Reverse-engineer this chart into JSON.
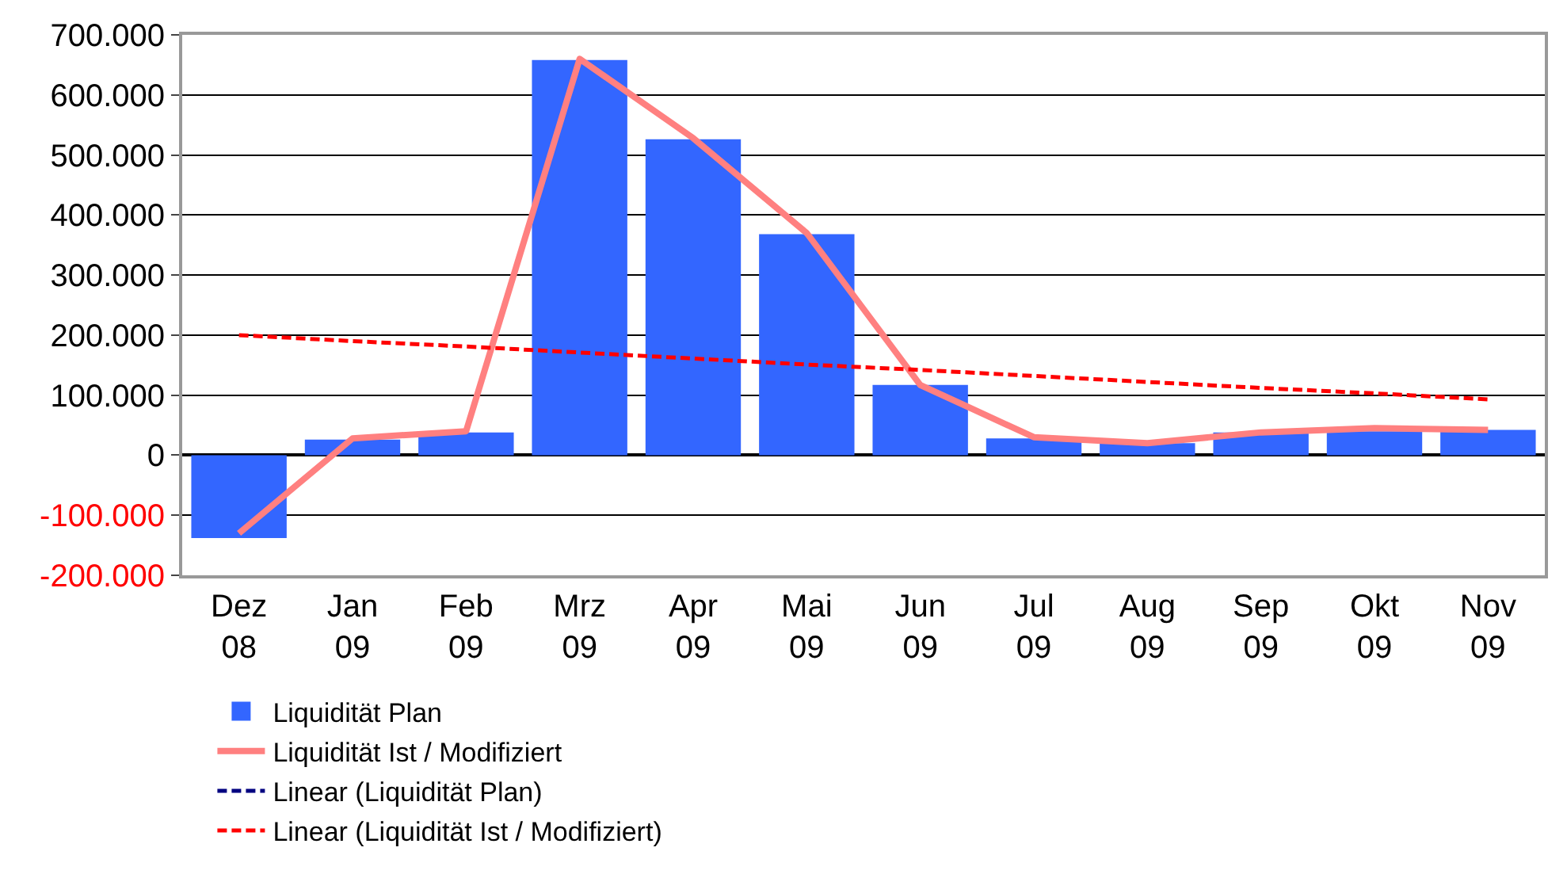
{
  "chart_data": {
    "type": "bar",
    "categories": [
      "Dez\n08",
      "Jan\n09",
      "Feb\n09",
      "Mrz\n09",
      "Apr\n09",
      "Mai\n09",
      "Jun\n09",
      "Jul\n09",
      "Aug\n09",
      "Sep\n09",
      "Okt\n09",
      "Nov\n09"
    ],
    "series": [
      {
        "name": "Liquidität Plan",
        "color": "#3366ff",
        "values": [
          -138000,
          26000,
          38000,
          658000,
          526000,
          368000,
          117000,
          28000,
          20000,
          38000,
          40000,
          42000
        ]
      },
      {
        "name": "Liquidität Ist / Modifiziert",
        "type": "line",
        "color": "#ff8080",
        "line_style": "solid",
        "values": [
          -130000,
          28000,
          40000,
          660000,
          528000,
          370000,
          117000,
          30000,
          20000,
          38000,
          45000,
          42000
        ]
      },
      {
        "name": "Linear (Liquidität Plan)",
        "type": "line",
        "color": "#000080",
        "line_style": "dashed",
        "values": [
          null,
          null,
          null,
          null,
          null,
          null,
          null,
          null,
          null,
          null,
          null,
          null
        ]
      },
      {
        "name": "Linear (Liquidität Ist / Modifiziert)",
        "type": "line",
        "color": "#ff0000",
        "line_style": "dashed",
        "values": [
          200000,
          190000,
          181000,
          171000,
          161000,
          151000,
          142000,
          132000,
          122000,
          112000,
          103000,
          93000
        ]
      }
    ],
    "ylim": [
      -200000,
      700000
    ],
    "yticks": [
      {
        "value": -200000,
        "label": "-200.000"
      },
      {
        "value": -100000,
        "label": "-100.000"
      },
      0,
      {
        "value": 100000,
        "label": "100.000"
      },
      {
        "value": 200000,
        "label": "200.000"
      },
      {
        "value": 300000,
        "label": "300.000"
      },
      {
        "value": 400000,
        "label": "400.000"
      },
      {
        "value": 500000,
        "label": "500.000"
      },
      {
        "value": 600000,
        "label": "600.000"
      },
      {
        "value": 700000,
        "label": "700.000"
      }
    ],
    "grid": "y",
    "legend": "bottom",
    "marker": "none"
  }
}
